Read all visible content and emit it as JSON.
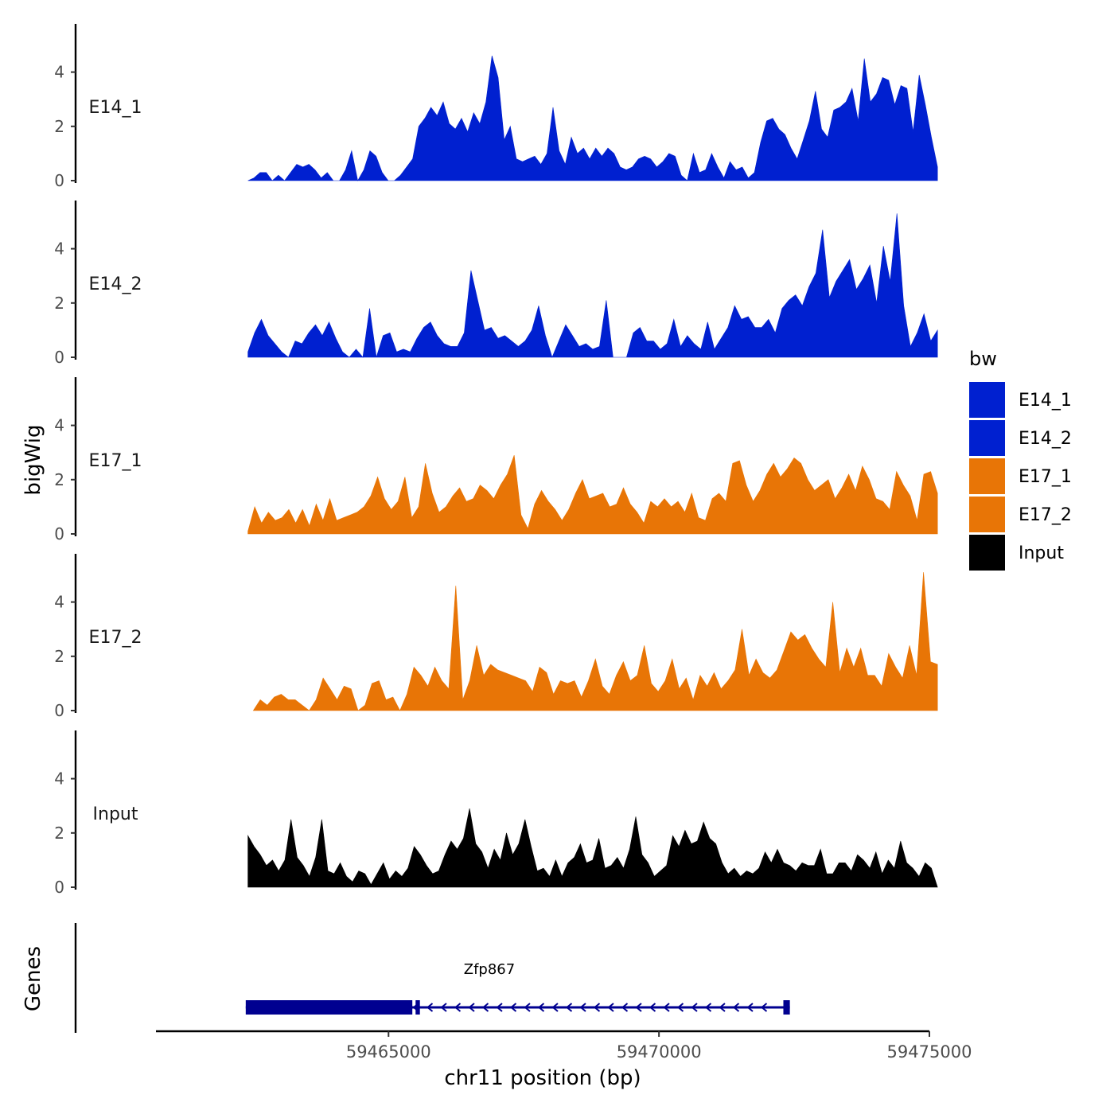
{
  "chart_data": {
    "type": "area",
    "ylabel": "bigWig",
    "xlabel": "chr11 position (bp)",
    "genes_label": "Genes",
    "xlim": [
      59460700,
      59475000
    ],
    "x_ticks": [
      59465000,
      59470000,
      59475000
    ],
    "x_tick_labels": [
      "59465000",
      "59470000",
      "59475000"
    ],
    "ylim": [
      0,
      5.7
    ],
    "y_ticks": [
      0,
      2,
      4
    ],
    "y_tick_labels": [
      "0",
      "2",
      "4"
    ],
    "legend": {
      "title": "bw",
      "position": "right",
      "items": [
        {
          "label": "E14_1",
          "color": "#0020D0"
        },
        {
          "label": "E14_2",
          "color": "#0020D0"
        },
        {
          "label": "E17_1",
          "color": "#E87506"
        },
        {
          "label": "E17_2",
          "color": "#E87506"
        },
        {
          "label": "Input",
          "color": "#000000"
        }
      ]
    },
    "tracks": [
      {
        "name": "E14_1",
        "color": "#0020D0",
        "x_start": 59462400,
        "x_end": 59475150,
        "values": [
          0,
          0.1,
          0.3,
          0.3,
          0,
          0.2,
          0,
          0.3,
          0.6,
          0.5,
          0.6,
          0.4,
          0.1,
          0.3,
          0,
          0,
          0.4,
          1.1,
          0,
          0.4,
          1.1,
          0.9,
          0.3,
          0,
          0,
          0.2,
          0.5,
          0.8,
          2,
          2.3,
          2.7,
          2.4,
          2.9,
          2.1,
          1.9,
          2.3,
          1.8,
          2.5,
          2.1,
          2.9,
          4.6,
          3.8,
          1.5,
          2,
          0.8,
          0.7,
          0.8,
          0.9,
          0.6,
          1,
          2.7,
          1.1,
          0.6,
          1.6,
          1,
          1.2,
          0.8,
          1.2,
          0.9,
          1.2,
          1,
          0.5,
          0.4,
          0.5,
          0.8,
          0.9,
          0.8,
          0.5,
          0.7,
          1,
          0.9,
          0.2,
          0,
          1,
          0.3,
          0.4,
          1,
          0.5,
          0.1,
          0.7,
          0.4,
          0.5,
          0.1,
          0.3,
          1.4,
          2.2,
          2.3,
          1.9,
          1.7,
          1.2,
          0.8,
          1.5,
          2.2,
          3.3,
          1.9,
          1.6,
          2.6,
          2.7,
          2.9,
          3.4,
          2.2,
          4.5,
          2.9,
          3.2,
          3.8,
          3.7,
          2.8,
          3.5,
          3.4,
          1.8,
          3.9,
          2.8,
          1.6,
          0.5
        ]
      },
      {
        "name": "E14_2",
        "color": "#0020D0",
        "x_start": 59462400,
        "x_end": 59475150,
        "values": [
          0.2,
          0.9,
          1.4,
          0.8,
          0.5,
          0.2,
          0,
          0.6,
          0.5,
          0.9,
          1.2,
          0.8,
          1.3,
          0.7,
          0.2,
          0,
          0.3,
          0,
          1.8,
          0,
          0.8,
          0.9,
          0.2,
          0.3,
          0.2,
          0.7,
          1.1,
          1.3,
          0.8,
          0.5,
          0.4,
          0.4,
          0.9,
          3.2,
          2.1,
          1,
          1.1,
          0.7,
          0.8,
          0.6,
          0.4,
          0.6,
          1,
          1.9,
          0.8,
          0,
          0.6,
          1.2,
          0.8,
          0.4,
          0.5,
          0.3,
          0.4,
          2.1,
          0,
          0,
          0,
          0.9,
          1.1,
          0.6,
          0.6,
          0.3,
          0.5,
          1.4,
          0.4,
          0.8,
          0.5,
          0.3,
          1.3,
          0.3,
          0.7,
          1.1,
          1.9,
          1.4,
          1.5,
          1.1,
          1.1,
          1.4,
          0.9,
          1.8,
          2.1,
          2.3,
          1.9,
          2.6,
          3.1,
          4.7,
          2.2,
          2.8,
          3.2,
          3.6,
          2.5,
          2.9,
          3.4,
          2,
          4.1,
          2.8,
          5.3,
          1.9,
          0.4,
          0.9,
          1.6,
          0.6,
          1
        ]
      },
      {
        "name": "E17_1",
        "color": "#E87506",
        "x_start": 59462400,
        "x_end": 59475150,
        "values": [
          0.1,
          1,
          0.4,
          0.8,
          0.5,
          0.6,
          0.9,
          0.4,
          0.9,
          0.3,
          1.1,
          0.5,
          1.3,
          0.5,
          0.6,
          0.7,
          0.8,
          1,
          1.4,
          2.1,
          1.3,
          0.9,
          1.2,
          2.1,
          0.6,
          1,
          2.6,
          1.5,
          0.8,
          1,
          1.4,
          1.7,
          1.2,
          1.3,
          1.8,
          1.6,
          1.3,
          1.8,
          2.2,
          2.9,
          0.7,
          0.2,
          1.1,
          1.6,
          1.2,
          0.9,
          0.5,
          0.9,
          1.5,
          2,
          1.3,
          1.4,
          1.5,
          1,
          1.1,
          1.7,
          1.1,
          0.8,
          0.4,
          1.2,
          1,
          1.3,
          1,
          1.2,
          0.8,
          1.5,
          0.6,
          0.5,
          1.3,
          1.5,
          1.2,
          2.6,
          2.7,
          1.8,
          1.2,
          1.6,
          2.2,
          2.6,
          2.1,
          2.4,
          2.8,
          2.6,
          2,
          1.6,
          1.8,
          2,
          1.3,
          1.7,
          2.2,
          1.6,
          2.5,
          2,
          1.3,
          1.2,
          0.9,
          2.3,
          1.8,
          1.4,
          0.5,
          2.2,
          2.3,
          1.5
        ]
      },
      {
        "name": "E17_2",
        "color": "#E87506",
        "x_start": 59462500,
        "x_end": 59475150,
        "values": [
          0,
          0.4,
          0.2,
          0.5,
          0.6,
          0.4,
          0.4,
          0.2,
          0,
          0.4,
          1.2,
          0.8,
          0.4,
          0.9,
          0.8,
          0,
          0.2,
          1,
          1.1,
          0.4,
          0.5,
          0,
          0.6,
          1.6,
          1.3,
          0.9,
          1.6,
          1.1,
          0.8,
          4.6,
          0.4,
          1.1,
          2.4,
          1.3,
          1.7,
          1.5,
          1.4,
          1.3,
          1.2,
          1.1,
          0.7,
          1.6,
          1.4,
          0.6,
          1.1,
          1,
          1.1,
          0.5,
          1.1,
          1.9,
          0.9,
          0.6,
          1.3,
          1.8,
          1.1,
          1.3,
          2.4,
          1,
          0.7,
          1.1,
          1.9,
          0.8,
          1.2,
          0.4,
          1.3,
          0.9,
          1.4,
          0.8,
          1.1,
          1.5,
          3,
          1.3,
          1.9,
          1.4,
          1.2,
          1.5,
          2.2,
          2.9,
          2.6,
          2.8,
          2.3,
          1.9,
          1.6,
          4,
          1.4,
          2.3,
          1.6,
          2.3,
          1.3,
          1.3,
          0.9,
          2.1,
          1.6,
          1.2,
          2.4,
          1.3,
          5.1,
          1.8,
          1.7
        ]
      },
      {
        "name": "Input",
        "color": "#000000",
        "x_start": 59462400,
        "x_end": 59475150,
        "values": [
          1.9,
          1.5,
          1.2,
          0.8,
          1,
          0.6,
          1,
          2.5,
          1.1,
          0.8,
          0.4,
          1.1,
          2.5,
          0.6,
          0.5,
          0.9,
          0.4,
          0.2,
          0.6,
          0.5,
          0.1,
          0.5,
          0.9,
          0.3,
          0.6,
          0.4,
          0.7,
          1.5,
          1.2,
          0.8,
          0.5,
          0.6,
          1.2,
          1.7,
          1.4,
          1.8,
          2.9,
          1.6,
          1.3,
          0.7,
          1.4,
          1,
          2,
          1.2,
          1.6,
          2.5,
          1.5,
          0.6,
          0.7,
          0.4,
          1,
          0.4,
          0.9,
          1.1,
          1.6,
          0.9,
          1,
          1.8,
          0.7,
          0.8,
          1.1,
          0.7,
          1.4,
          2.6,
          1.2,
          0.9,
          0.4,
          0.6,
          0.8,
          1.9,
          1.5,
          2.1,
          1.6,
          1.7,
          2.4,
          1.8,
          1.6,
          0.9,
          0.5,
          0.7,
          0.4,
          0.6,
          0.5,
          0.7,
          1.3,
          0.9,
          1.4,
          0.9,
          0.8,
          0.6,
          0.9,
          0.8,
          0.8,
          1.4,
          0.5,
          0.5,
          0.9,
          0.9,
          0.6,
          1.2,
          1,
          0.7,
          1.3,
          0.5,
          1,
          0.7,
          1.7,
          0.9,
          0.7,
          0.4,
          0.9,
          0.7,
          0
        ]
      }
    ],
    "gene": {
      "name": "Zfp867",
      "strand": "-",
      "color": "#000090",
      "x_start": 59462360,
      "x_end": 59472420,
      "exons": [
        [
          59462360,
          59465440
        ],
        [
          59465010,
          59465060
        ],
        [
          59465500,
          59465580
        ],
        [
          59472300,
          59472420
        ]
      ]
    }
  }
}
